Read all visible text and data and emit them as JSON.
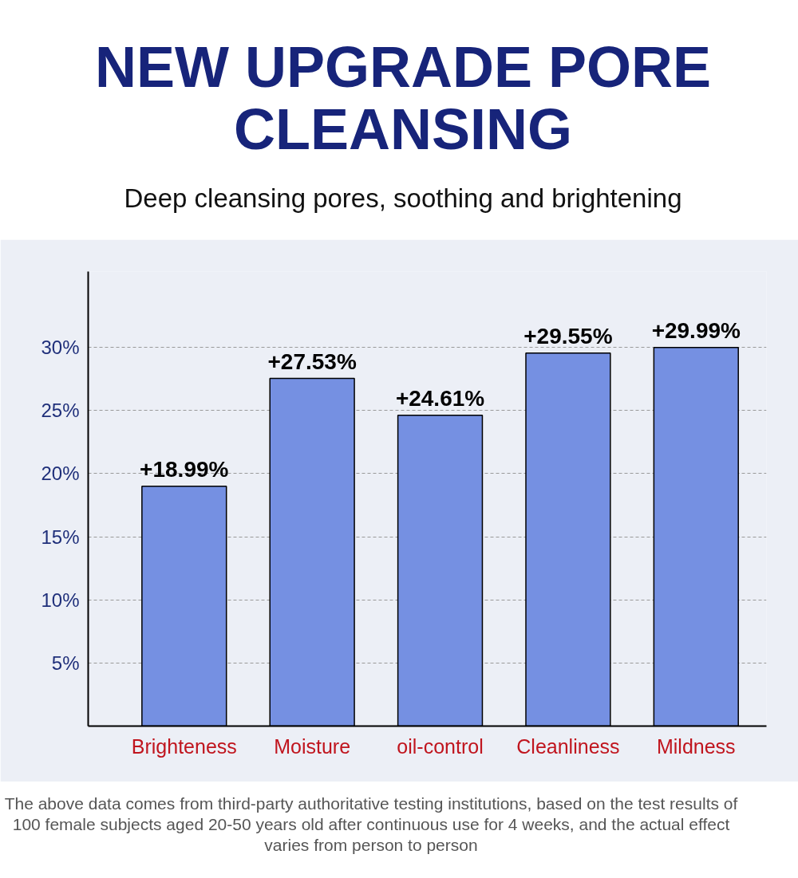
{
  "chart_data": {
    "type": "bar",
    "title": "NEW UPGRADE PORE CLEANSING",
    "subtitle": "Deep cleansing pores, soothing and brightening",
    "categories": [
      "Brighteness",
      "Moisture",
      "oil-control",
      "Cleanliness",
      "Mildness"
    ],
    "values": [
      18.99,
      27.53,
      24.61,
      29.55,
      29.99
    ],
    "value_labels": [
      "+18.99%",
      "+27.53%",
      "+24.61%",
      "+29.55%",
      "+29.99%"
    ],
    "color": "#7590e2",
    "ylim": [
      0,
      36
    ],
    "yticks": [
      {
        "value": 5,
        "label": "5%"
      },
      {
        "value": 10,
        "label": "10%"
      },
      {
        "value": 15,
        "label": "15%"
      },
      {
        "value": 20,
        "label": "20%"
      },
      {
        "value": 25,
        "label": "25%"
      },
      {
        "value": 30,
        "label": "30%"
      }
    ],
    "grid": "y",
    "annotations": [
      "The above data comes from third-party authoritative testing institutions, based on the test results of 100 female subjects aged 20-50 years old after continuous use for 4 weeks, and the actual effect varies from person to person"
    ]
  }
}
